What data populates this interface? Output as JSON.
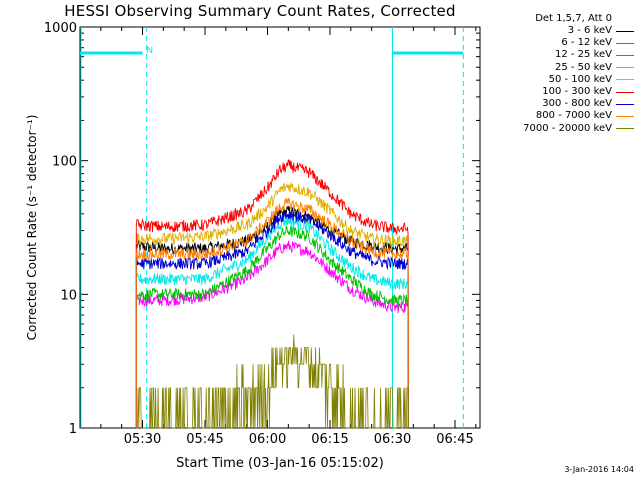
{
  "chart_data": {
    "type": "line",
    "title": "HESSI Observing Summary Count Rates, Corrected",
    "xlabel": "Start Time (03-Jan-16 05:15:02)",
    "ylabel": "Corrected Count Rate (s⁻¹ detector⁻¹)",
    "yscale": "log",
    "ylim": [
      1,
      1000
    ],
    "xlim_minutes_after_0515": [
      0,
      96
    ],
    "x_ticks": [
      {
        "label": "05:30",
        "minute": 15
      },
      {
        "label": "05:45",
        "minute": 30
      },
      {
        "label": "06:00",
        "minute": 45
      },
      {
        "label": "06:15",
        "minute": 60
      },
      {
        "label": "06:30",
        "minute": 75
      },
      {
        "label": "06:45",
        "minute": 90
      }
    ],
    "y_ticks": [
      {
        "label": "1",
        "value": 1
      },
      {
        "label": "10",
        "value": 10
      },
      {
        "label": "100",
        "value": 100
      },
      {
        "label": "1000",
        "value": 1000
      }
    ],
    "legend_title": "Det 1,5,7, Att 0",
    "legend_position": "right",
    "x_sample_minutes": [
      13.5,
      20,
      30,
      40,
      45,
      48,
      50,
      55,
      60,
      65,
      70,
      75,
      78.8
    ],
    "series": [
      {
        "name": "3 - 6 keV",
        "color": "#000000",
        "values": [
          23,
          22,
          22,
          25,
          32,
          40,
          42,
          38,
          30,
          25,
          23,
          22,
          22
        ]
      },
      {
        "name": "6 - 12 keV",
        "color": "#ff00ff",
        "values": [
          9,
          9,
          9.5,
          13,
          18,
          22,
          23,
          21,
          15,
          11,
          9,
          8,
          8
        ]
      },
      {
        "name": "12 - 25 keV",
        "color": "#00c000",
        "values": [
          10,
          10,
          10,
          15,
          22,
          28,
          30,
          27,
          18,
          13,
          10,
          9,
          9
        ]
      },
      {
        "name": "25 - 50 keV",
        "color": "#00e8e8",
        "values": [
          13,
          13,
          13,
          18,
          27,
          34,
          36,
          32,
          22,
          16,
          13,
          12,
          12
        ]
      },
      {
        "name": "50 - 100 keV",
        "color": "#e0b000",
        "values": [
          26,
          26,
          27,
          33,
          45,
          60,
          65,
          58,
          42,
          30,
          26,
          25,
          25
        ]
      },
      {
        "name": "100 - 300 keV",
        "color": "#ff0000",
        "values": [
          33,
          32,
          33,
          42,
          62,
          85,
          92,
          82,
          58,
          40,
          33,
          31,
          31
        ]
      },
      {
        "name": "300 - 800 keV",
        "color": "#0000d0",
        "values": [
          17,
          17,
          17,
          21,
          30,
          38,
          40,
          36,
          28,
          21,
          18,
          17,
          17
        ]
      },
      {
        "name": "800 - 7000 keV",
        "color": "#ff8000",
        "values": [
          20,
          20,
          20,
          25,
          35,
          45,
          48,
          43,
          33,
          25,
          21,
          20,
          20
        ]
      },
      {
        "name": "7000 - 20000 keV",
        "color": "#808000",
        "values": [
          1,
          1,
          1,
          1.5,
          2.2,
          3.2,
          3.5,
          3.2,
          2.2,
          1.5,
          1,
          1,
          1
        ]
      }
    ],
    "annotations": [
      {
        "text": "N",
        "minute": 15.2,
        "value": 800
      }
    ],
    "markers": {
      "cyan_bars": [
        [
          0,
          15
        ],
        [
          75,
          92
        ]
      ],
      "solid_vlines_minutes": [
        0,
        75
      ],
      "dashed_vlines_minutes": [
        16,
        92
      ],
      "bar_level": 800,
      "color": "#00e8e8"
    },
    "grid": false
  },
  "footer": {
    "date_stamp": "3-Jan-2016 14:04"
  }
}
